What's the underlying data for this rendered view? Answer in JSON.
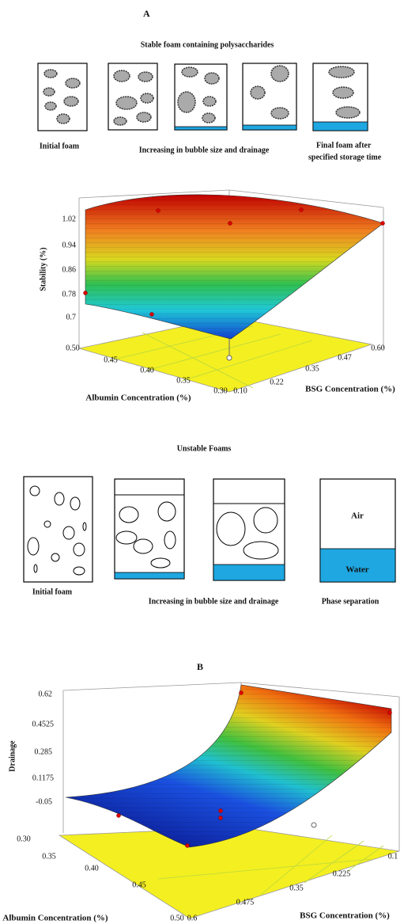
{
  "panel_a": {
    "label": "A",
    "stable": {
      "title": "Stable foam containing polysaccharides",
      "labels": [
        "Initial foam",
        "Increasing in bubble size and drainage",
        "Final foam after",
        "specified storage time"
      ]
    },
    "plot": {
      "y_label": "Stability (%)",
      "y_ticks": [
        "1.02",
        "0.94",
        "0.86",
        "0.78",
        "0.7"
      ],
      "x_label": "Albumin Concentration (%)",
      "x_ticks": [
        "0.50",
        "0.45",
        "0.40",
        "0.35",
        "0.30"
      ],
      "z_label": "BSG Concentration (%)",
      "z_ticks": [
        "0.10",
        "0.22",
        "0.35",
        "0.47",
        "0.60"
      ]
    },
    "unstable": {
      "title": "Unstable Foams",
      "labels": [
        "Initial foam",
        "Increasing in bubble size and drainage",
        "Phase separation"
      ],
      "air": "Air",
      "water": "Water"
    }
  },
  "panel_b": {
    "label": "B",
    "plot": {
      "y_label": "Drainage",
      "y_ticks": [
        "0.62",
        "0.4525",
        "0.285",
        "0.1175",
        "-0.05"
      ],
      "x_label": "Albumin Concentration (%)",
      "x_ticks": [
        "0.30",
        "0.35",
        "0.40",
        "0.45",
        "0.50"
      ],
      "z_label": "BSG Concentration (%)",
      "z_ticks": [
        "0.6",
        "0.475",
        "0.35",
        "0.225",
        "0.1"
      ]
    }
  }
}
